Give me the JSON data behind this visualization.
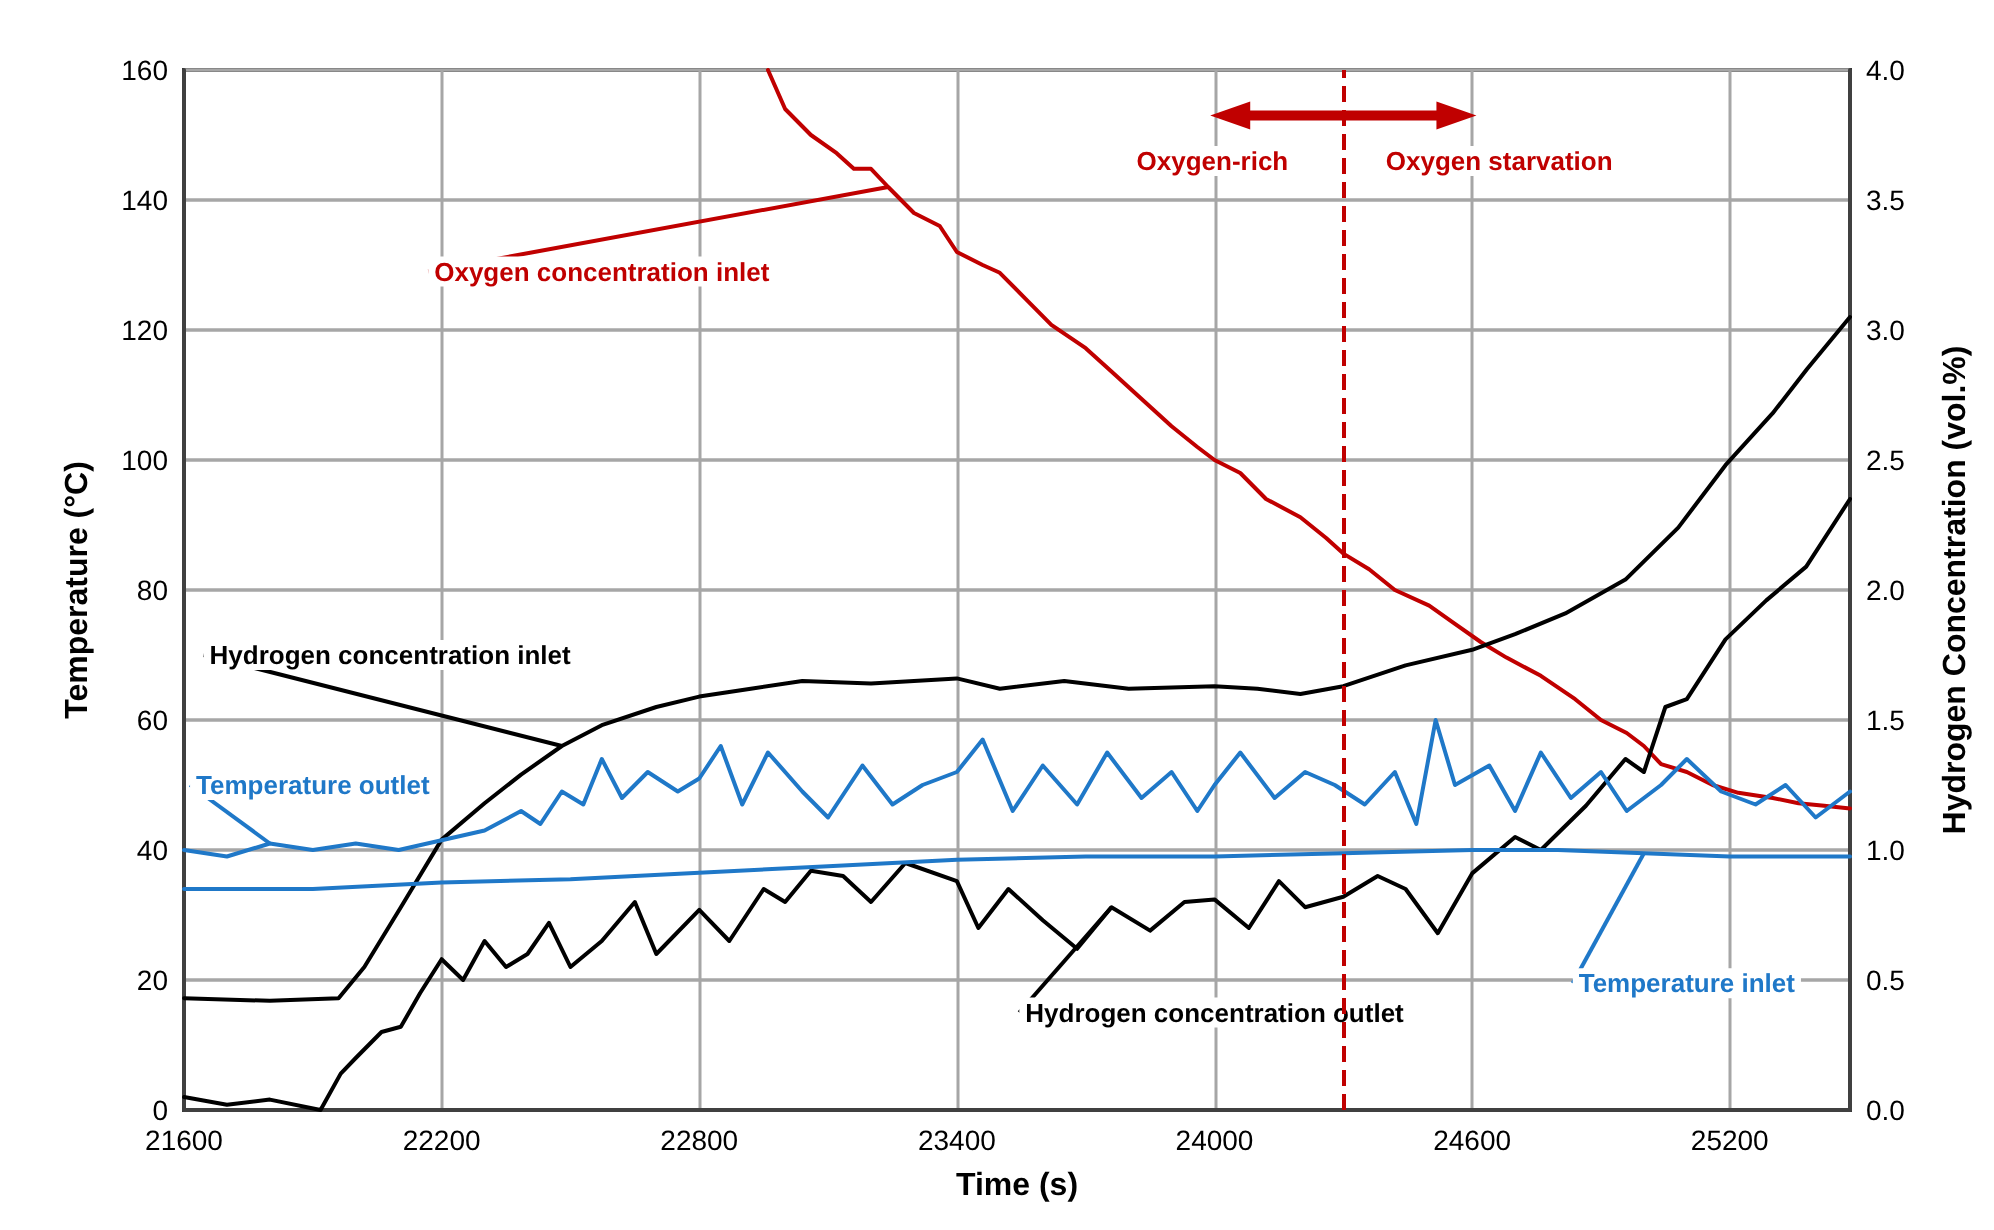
{
  "chart_data": {
    "type": "line",
    "xlabel": "Time (s)",
    "ylabel": "Temperature (°C)",
    "y2label": "Hydrogen Concentration (vol.%)",
    "xlim": [
      21600,
      25480
    ],
    "xticks": [
      21600,
      22200,
      22800,
      23400,
      24000,
      24600,
      25200
    ],
    "ylim": [
      0,
      160
    ],
    "yticks": [
      0,
      20,
      40,
      60,
      80,
      100,
      120,
      140,
      160
    ],
    "y2lim": [
      0,
      4
    ],
    "y2ticks": [
      {
        "value": 0,
        "label": "0.0"
      },
      {
        "value": 0.5,
        "label": "0.5"
      },
      {
        "value": 1,
        "label": "1.0"
      },
      {
        "value": 1.5,
        "label": "1.5"
      },
      {
        "value": 2,
        "label": "2.0"
      },
      {
        "value": 2.5,
        "label": "2.5"
      },
      {
        "value": 3,
        "label": "3.0"
      },
      {
        "value": 3.5,
        "label": "3.5"
      },
      {
        "value": 4,
        "label": "4.0"
      }
    ],
    "grid": true,
    "marker": "none",
    "line_style": "solid",
    "series": [
      {
        "name": "Oxygen concentration inlet",
        "color": "#c00000",
        "axis": "y2",
        "x": [
          22960,
          23000,
          23060,
          23120,
          23160,
          23200,
          23240,
          23300,
          23360,
          23400,
          23460,
          23500,
          23560,
          23620,
          23700,
          23760,
          23820,
          23900,
          23960,
          24000,
          24060,
          24120,
          24200,
          24260,
          24300,
          24360,
          24420,
          24500,
          24560,
          24620,
          24680,
          24760,
          24840,
          24900,
          24960,
          25000,
          25040,
          25100,
          25160,
          25220,
          25300,
          25360,
          25420,
          25480
        ],
        "values": [
          4.0,
          3.85,
          3.75,
          3.68,
          3.62,
          3.62,
          3.55,
          3.45,
          3.4,
          3.3,
          3.25,
          3.22,
          3.12,
          3.02,
          2.93,
          2.84,
          2.75,
          2.63,
          2.55,
          2.5,
          2.45,
          2.35,
          2.28,
          2.2,
          2.14,
          2.08,
          2.0,
          1.94,
          1.87,
          1.8,
          1.74,
          1.67,
          1.58,
          1.5,
          1.45,
          1.4,
          1.33,
          1.3,
          1.25,
          1.22,
          1.2,
          1.18,
          1.17,
          1.16
        ]
      },
      {
        "name": "Hydrogen concentration inlet",
        "color": "#000000",
        "axis": "y2",
        "x": [
          21600,
          21800,
          21960,
          22020,
          22105,
          22200,
          22300,
          22385,
          22480,
          22573,
          22700,
          22800,
          22920,
          23040,
          23200,
          23400,
          23500,
          23650,
          23800,
          24000,
          24100,
          24200,
          24300,
          24445,
          24600,
          24700,
          24817,
          24957,
          25080,
          25190,
          25300,
          25380,
          25480
        ],
        "values": [
          0.43,
          0.42,
          0.43,
          0.55,
          0.78,
          1.04,
          1.18,
          1.29,
          1.4,
          1.48,
          1.55,
          1.59,
          1.62,
          1.65,
          1.64,
          1.66,
          1.62,
          1.65,
          1.62,
          1.63,
          1.62,
          1.6,
          1.63,
          1.71,
          1.77,
          1.83,
          1.91,
          2.04,
          2.24,
          2.48,
          2.68,
          2.85,
          3.05
        ]
      },
      {
        "name": "Hydrogen concentration outlet",
        "color": "#000000",
        "axis": "y2",
        "x": [
          21600,
          21700,
          21800,
          21918,
          21965,
          22000,
          22060,
          22105,
          22150,
          22200,
          22250,
          22300,
          22350,
          22400,
          22450,
          22500,
          22573,
          22650,
          22700,
          22800,
          22870,
          22950,
          23000,
          23060,
          23135,
          23200,
          23280,
          23400,
          23450,
          23520,
          23600,
          23680,
          23760,
          23850,
          23930,
          24000,
          24080,
          24150,
          24211,
          24300,
          24380,
          24445,
          24520,
          24600,
          24700,
          24760,
          24865,
          24957,
          25000,
          25050,
          25100,
          25190,
          25285,
          25378,
          25480
        ],
        "values": [
          0.05,
          0.02,
          0.04,
          0.0,
          0.14,
          0.2,
          0.3,
          0.32,
          0.45,
          0.58,
          0.5,
          0.65,
          0.55,
          0.6,
          0.72,
          0.55,
          0.65,
          0.8,
          0.6,
          0.77,
          0.65,
          0.85,
          0.8,
          0.92,
          0.9,
          0.8,
          0.95,
          0.88,
          0.7,
          0.85,
          0.73,
          0.62,
          0.78,
          0.69,
          0.8,
          0.81,
          0.7,
          0.88,
          0.78,
          0.82,
          0.9,
          0.85,
          0.68,
          0.91,
          1.05,
          1.0,
          1.17,
          1.35,
          1.3,
          1.55,
          1.58,
          1.81,
          1.96,
          2.09,
          2.35
        ]
      },
      {
        "name": "Temperature outlet",
        "color": "#1f78c8",
        "x": [
          21600,
          21700,
          21800,
          21900,
          22000,
          22100,
          22200,
          22300,
          22385,
          22430,
          22480,
          22530,
          22573,
          22620,
          22680,
          22750,
          22800,
          22850,
          22900,
          22960,
          23040,
          23100,
          23180,
          23250,
          23320,
          23400,
          23460,
          23530,
          23600,
          23680,
          23750,
          23830,
          23900,
          23960,
          24000,
          24060,
          24140,
          24211,
          24280,
          24350,
          24420,
          24470,
          24515,
          24560,
          24640,
          24700,
          24760,
          24830,
          24900,
          24960,
          25040,
          25100,
          25180,
          25260,
          25330,
          25400,
          25480
        ],
        "values": [
          40,
          39,
          41,
          40,
          41,
          40,
          41.5,
          43,
          46,
          44,
          49,
          47,
          54,
          48,
          52,
          49,
          51,
          56,
          47,
          55,
          49,
          45,
          53,
          47,
          50,
          52,
          57,
          46,
          53,
          47,
          55,
          48,
          52,
          46,
          50,
          55,
          48,
          52,
          50,
          47,
          52,
          44,
          60,
          50,
          53,
          46,
          55,
          48,
          52,
          46,
          50,
          54,
          49,
          47,
          50,
          45,
          49
        ]
      },
      {
        "name": "Temperature inlet",
        "color": "#1f78c8",
        "x": [
          21600,
          21900,
          22200,
          22500,
          22800,
          23100,
          23400,
          23700,
          24000,
          24300,
          24600,
          24800,
          25000,
          25200,
          25480
        ],
        "values": [
          34,
          34,
          35,
          35.5,
          36.5,
          37.5,
          38.5,
          39,
          39,
          39.5,
          40,
          40,
          39.5,
          39,
          39
        ]
      }
    ],
    "ref_lines": [
      {
        "axis": "x",
        "value": 24300,
        "color": "#c00000",
        "line_style": "dashed"
      }
    ],
    "annotations": [
      "Oxygen-rich",
      "Oxygen starvation"
    ]
  }
}
